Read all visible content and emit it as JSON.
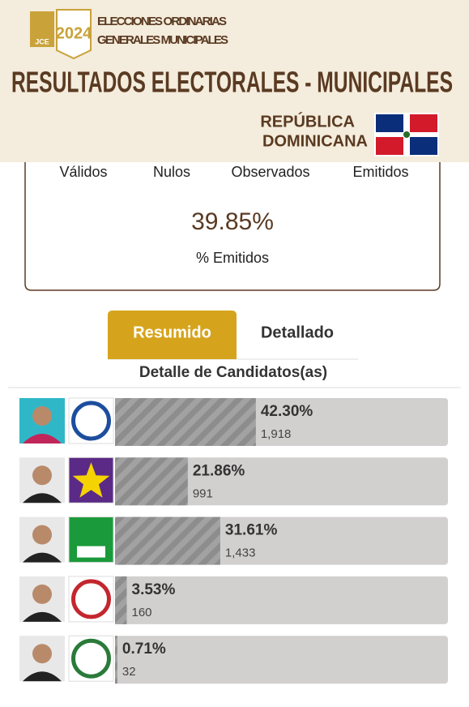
{
  "header": {
    "logo_org": "JCE",
    "logo_year": "2024",
    "event_line1": "ELECCIONES ORDINARIAS",
    "event_line2": "GENERALES MUNICIPALES",
    "title": "RESULTADOS ELECTORALES - MUNICIPALES",
    "country_line1": "REPÚBLICA",
    "country_line2": "DOMINICANA"
  },
  "summary": {
    "columns": [
      "Válidos",
      "Nulos",
      "Observados",
      "Emitidos"
    ],
    "percent": "39.85%",
    "percent_label": "% Emitidos"
  },
  "tabs": [
    {
      "label": "Resumido",
      "active": true
    },
    {
      "label": "Detallado",
      "active": false
    }
  ],
  "section_title": "Detalle de Candidatos(as)",
  "candidates": [
    {
      "percent": {
        "value": 42.3,
        "label": "42.30%"
      },
      "votes": "1,918"
    },
    {
      "percent": {
        "value": 21.86,
        "label": "21.86%"
      },
      "votes": "991"
    },
    {
      "percent": {
        "value": 31.61,
        "label": "31.61%"
      },
      "votes": "1,433"
    },
    {
      "percent": {
        "value": 3.53,
        "label": "3.53%"
      },
      "votes": "160"
    },
    {
      "percent": {
        "value": 0.71,
        "label": "0.71%"
      },
      "votes": "32"
    }
  ]
}
